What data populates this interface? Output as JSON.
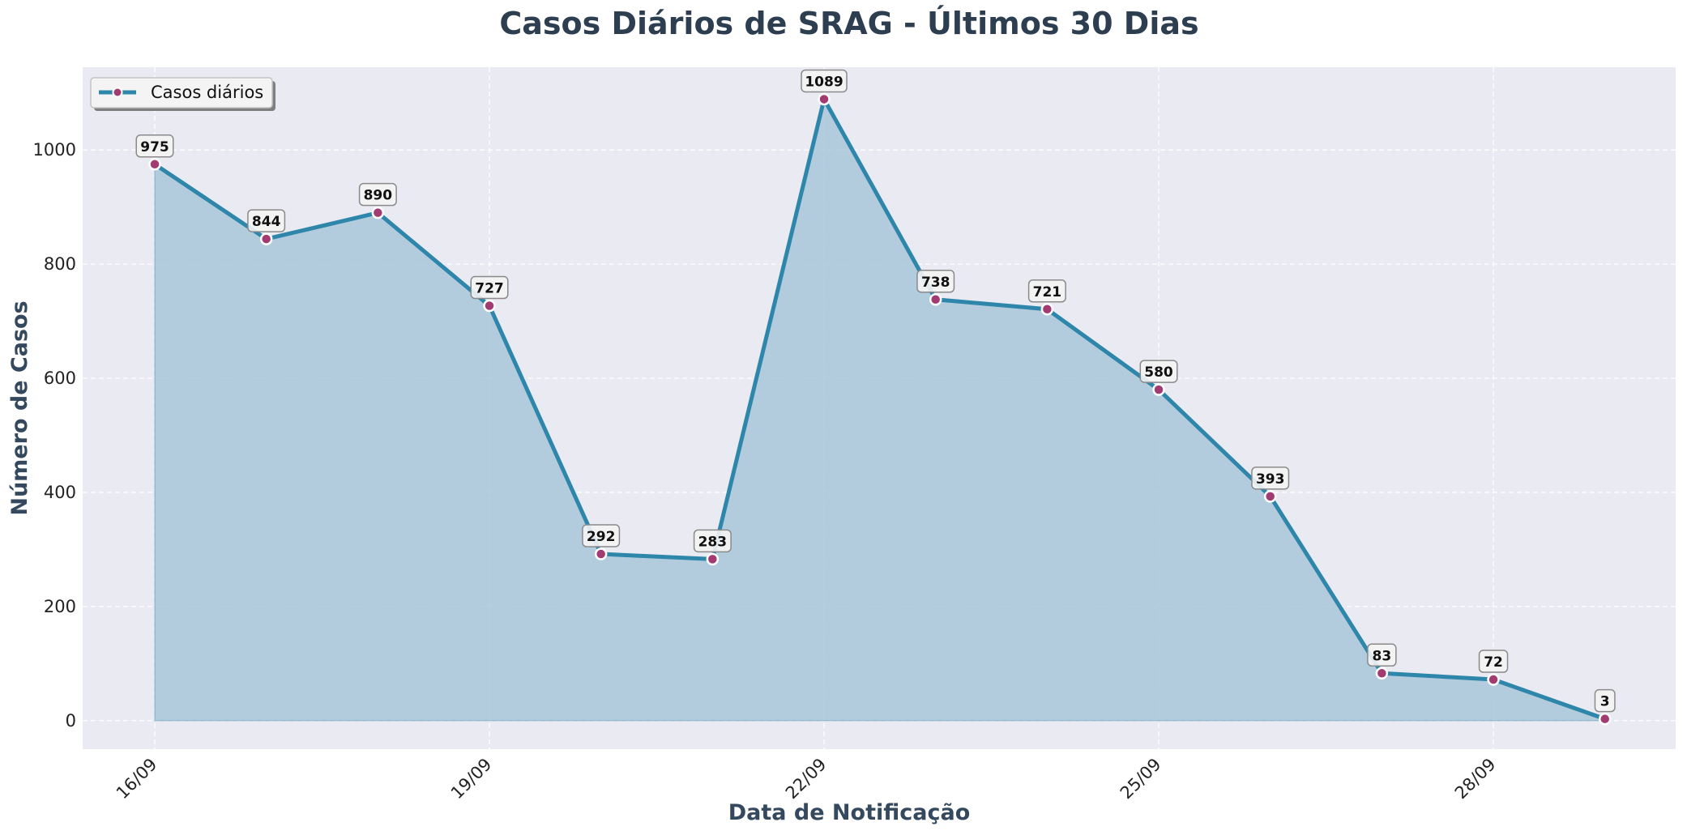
{
  "chart_data": {
    "type": "area",
    "title": "Casos Diários de SRAG - Últimos 30 Dias",
    "xlabel": "Data de Notificação",
    "ylabel": "Número de Casos",
    "x": [
      "16/09",
      "17/09",
      "18/09",
      "19/09",
      "20/09",
      "21/09",
      "22/09",
      "23/09",
      "24/09",
      "25/09",
      "26/09",
      "27/09",
      "28/09",
      "29/09"
    ],
    "x_tick_labels": [
      "16/09",
      "19/09",
      "22/09",
      "25/09",
      "28/09"
    ],
    "y_ticks": [
      0,
      200,
      400,
      600,
      800,
      1000
    ],
    "ylim": [
      -50,
      1145
    ],
    "series": [
      {
        "name": "Casos diários",
        "values": [
          975,
          844,
          890,
          727,
          292,
          283,
          1089,
          738,
          721,
          580,
          393,
          83,
          72,
          3
        ],
        "data_labels": [
          "975",
          "844",
          "890",
          "727",
          "292",
          "283",
          "1089",
          "738",
          "721",
          "580",
          "393",
          "83",
          "72",
          "3"
        ]
      }
    ],
    "legend_position": "top-left",
    "grid": true,
    "colors": {
      "line": "#2e86ab",
      "fill": "#a8c7d9",
      "marker": "#a23b72",
      "plot_background": "#eaeaf2",
      "grid": "#ffffff",
      "title": "#2c3e50",
      "axis_label": "#34495e"
    }
  }
}
